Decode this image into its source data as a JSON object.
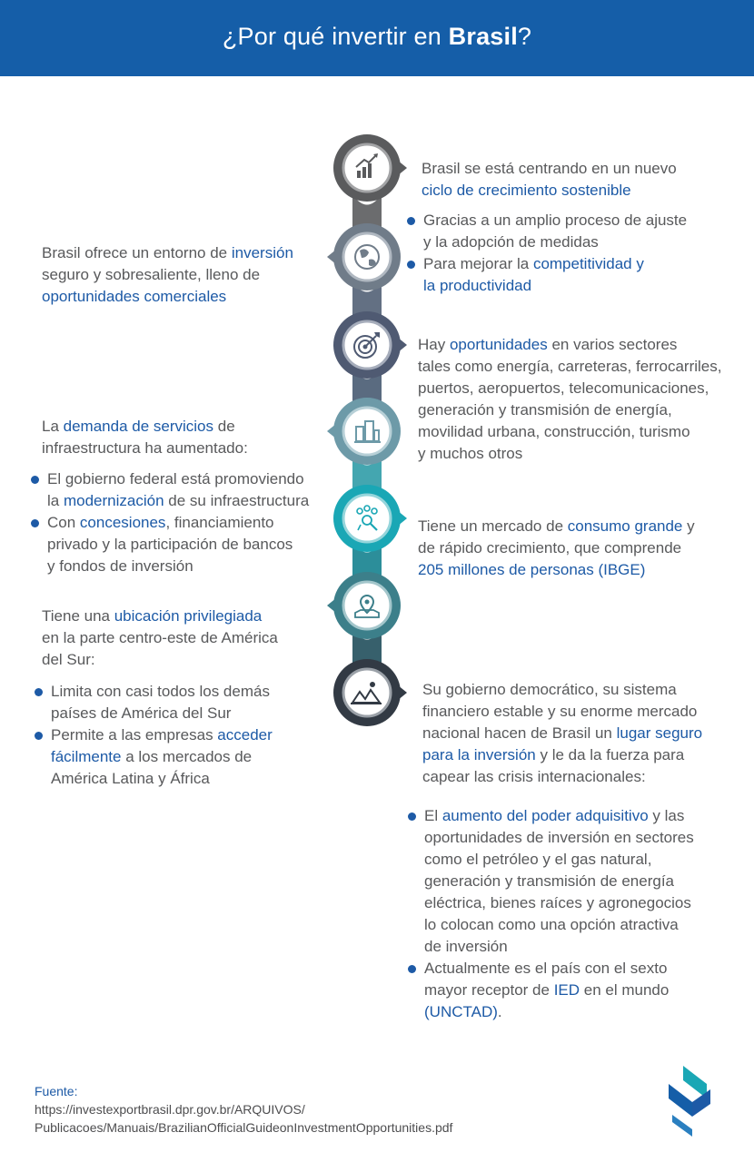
{
  "header": {
    "title_prefix": "¿Por qué invertir en ",
    "title_bold": "Brasil",
    "title_suffix": "?"
  },
  "icons": [
    "growth-chart-icon",
    "globe-icon",
    "target-icon",
    "buildings-icon",
    "people-network-icon",
    "map-pin-icon",
    "landscape-icon"
  ],
  "colors": {
    "header": "#155ea8",
    "accent": "#1d5aa6",
    "spine": [
      "#5a5b5d",
      "#707c89",
      "#4f5a72",
      "#6d9aa8",
      "#1aa7b5",
      "#3c7f8a",
      "#323a44"
    ]
  },
  "right": {
    "b1": {
      "l1": "Brasil se está centrando en un nuevo",
      "l2": "ciclo de crecimiento sostenible"
    },
    "b2": {
      "i1a": "Gracias a un amplio proceso de ajuste",
      "i1b": "y la adopción de medidas",
      "i2a_pre": "Para mejorar la ",
      "i2a_hl": "competitividad y",
      "i2b_hl": "la productividad"
    },
    "b3": {
      "l1_pre": "Hay ",
      "l1_hl": "oportunidades",
      "l1_post": " en varios sectores",
      "l2": "tales como energía, carreteras, ferrocarriles,",
      "l3": "puertos, aeropuertos, telecomunicaciones,",
      "l4": "generación y transmisión de energía,",
      "l5": "movilidad urbana, construcción, turismo",
      "l6": "y muchos otros"
    },
    "b4": {
      "l1_pre": "Tiene un mercado de ",
      "l1_hl": "consumo grande",
      "l1_post": " y",
      "l2": "de rápido crecimiento, que comprende",
      "l3_hl": "205 millones de personas (IBGE)"
    },
    "b5": {
      "l1": "Su gobierno democrático, su sistema",
      "l2": "financiero estable y su enorme mercado",
      "l3_pre": "nacional hacen de Brasil un ",
      "l3_hl": "lugar seguro",
      "l4_hl": "para la inversión",
      "l4_post": " y le da la fuerza para",
      "l5": "capear las crisis internacionales:",
      "i1a_pre": "El ",
      "i1a_hl": "aumento del poder adquisitivo",
      "i1a_post": " y las",
      "i1b": "oportunidades de inversión en sectores",
      "i1c": "como el petróleo y el gas natural,",
      "i1d": "generación y transmisión de energía",
      "i1e": "eléctrica, bienes raíces y agronegocios",
      "i1f": "lo colocan como una opción atractiva",
      "i1g": "de inversión",
      "i2a": "Actualmente es el país con el sexto",
      "i2b_pre": "mayor receptor de ",
      "i2b_hl": "IED",
      "i2b_post": " en el mundo",
      "i2c_hl": "(UNCTAD)",
      "i2c_post": "."
    }
  },
  "left": {
    "b1": {
      "l1_pre": "Brasil ofrece un entorno de ",
      "l1_hl": "inversión",
      "l2": "seguro y sobresaliente, lleno de",
      "l3_hl": "oportunidades comerciales"
    },
    "b2": {
      "l1_pre": "La ",
      "l1_hl": "demanda de servicios",
      "l1_post": " de",
      "l2": "infraestructura ha aumentado:",
      "i1a": "El gobierno federal está promoviendo",
      "i1b_pre": "la ",
      "i1b_hl": "modernización",
      "i1b_post": " de su infraestructura",
      "i2a_pre": "Con ",
      "i2a_hl": "concesiones",
      "i2a_post": ", financiamiento",
      "i2b": "privado y la participación de bancos",
      "i2c": "y fondos de inversión"
    },
    "b3": {
      "l1_pre": "Tiene una ",
      "l1_hl": "ubicación privilegiada",
      "l2": "en la parte centro-este de América",
      "l3": "del Sur:",
      "i1a": "Limita con casi todos los demás",
      "i1b": "países de América del Sur",
      "i2a_pre": "Permite a las empresas ",
      "i2a_hl": "acceder",
      "i2b_hl": "fácilmente",
      "i2b_post": " a los mercados de",
      "i2c": "América Latina y África"
    }
  },
  "source": {
    "label": "Fuente:",
    "l1": "https://investexportbrasil.dpr.gov.br/ARQUIVOS/",
    "l2": "Publicacoes/Manuais/BrazilianOfficialGuideonInvestmentOpportunities.pdf"
  }
}
